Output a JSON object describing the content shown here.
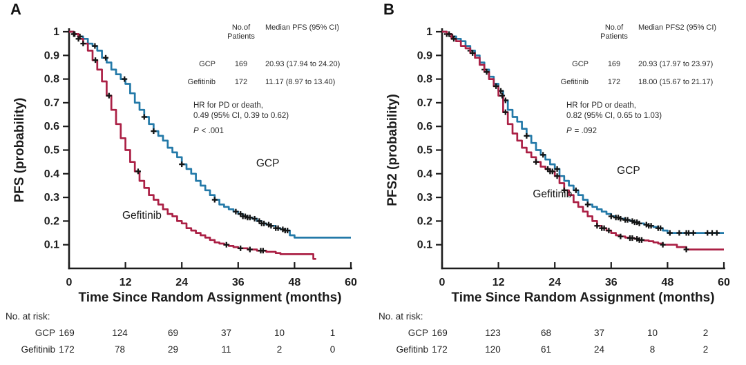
{
  "figure": {
    "colors": {
      "gcp": "#2379a8",
      "gefitinib": "#ab2045",
      "censor": "#141414",
      "axis": "#1c1c1c"
    }
  },
  "panels": [
    {
      "label": "A",
      "stats": {
        "col_n_header_line1": "No.of",
        "col_n_header_line2": "Patients",
        "col_median_header": "Median PFS (95% CI)",
        "rows": [
          {
            "name": "GCP",
            "n": "169",
            "median": "20.93 (17.94 to 24.20)"
          },
          {
            "name": "Gefitinib",
            "n": "172",
            "median": "11.17 (8.97 to 13.40)"
          }
        ]
      },
      "hr_line1": "HR for PD or death,",
      "hr_line2": "0.49 (95% CI, 0.39 to 0.62)",
      "p_label": "P",
      "p_value": "< .001",
      "risk_table": {
        "title": "No. at risk:",
        "rows": [
          {
            "name": "GCP",
            "values": [
              "169",
              "124",
              "69",
              "37",
              "10",
              "1"
            ]
          },
          {
            "name": "Gefitinib",
            "values": [
              "172",
              "78",
              "29",
              "11",
              "2",
              "0"
            ]
          }
        ]
      }
    },
    {
      "label": "B",
      "stats": {
        "col_n_header_line1": "No.of",
        "col_n_header_line2": "Patients",
        "col_median_header": "Median PFS2 (95% CI)",
        "rows": [
          {
            "name": "GCP",
            "n": "169",
            "median": "20.93 (17.97 to 23.97)"
          },
          {
            "name": "Gefitinib",
            "n": "172",
            "median": "18.00 (15.67 to 21.17)"
          }
        ]
      },
      "hr_line1": "HR for PD or death,",
      "hr_line2": "0.82 (95% CI, 0.65 to 1.03)",
      "p_label": "P",
      "p_value": "= .092",
      "risk_table": {
        "title": "No. at risk:",
        "rows": [
          {
            "name": "GCP",
            "values": [
              "169",
              "123",
              "68",
              "37",
              "10",
              "2"
            ]
          },
          {
            "name": "Gefitinb",
            "values": [
              "172",
              "120",
              "61",
              "24",
              "8",
              "2"
            ]
          }
        ]
      }
    }
  ],
  "chart_data": [
    {
      "type": "line",
      "subtype": "kaplan-meier-step",
      "xlabel": "Time Since Random Assignment (months)",
      "ylabel": "PFS (probability)",
      "xlim": [
        0,
        60
      ],
      "ylim": [
        0,
        1
      ],
      "xticks": [
        0,
        12,
        24,
        36,
        48,
        60
      ],
      "yticks": [
        1,
        0.9,
        0.8,
        0.7,
        0.6,
        0.5,
        0.4,
        0.3,
        0.2,
        0.1
      ],
      "grid": false,
      "series": [
        {
          "name": "GCP",
          "color_key": "gcp",
          "label_pos": [
            42.3,
            0.43
          ],
          "steps": [
            [
              0,
              1
            ],
            [
              1,
              0.99
            ],
            [
              2,
              0.98
            ],
            [
              3,
              0.97
            ],
            [
              4,
              0.95
            ],
            [
              5,
              0.94
            ],
            [
              6,
              0.92
            ],
            [
              7,
              0.89
            ],
            [
              8,
              0.87
            ],
            [
              9,
              0.84
            ],
            [
              10,
              0.82
            ],
            [
              11,
              0.8
            ],
            [
              12,
              0.78
            ],
            [
              13,
              0.74
            ],
            [
              14,
              0.7
            ],
            [
              15,
              0.67
            ],
            [
              16,
              0.64
            ],
            [
              17,
              0.61
            ],
            [
              18,
              0.58
            ],
            [
              19,
              0.56
            ],
            [
              20,
              0.54
            ],
            [
              21,
              0.51
            ],
            [
              22,
              0.49
            ],
            [
              23,
              0.47
            ],
            [
              24,
              0.44
            ],
            [
              25,
              0.42
            ],
            [
              26,
              0.4
            ],
            [
              27,
              0.37
            ],
            [
              28,
              0.35
            ],
            [
              29,
              0.33
            ],
            [
              30,
              0.31
            ],
            [
              31,
              0.29
            ],
            [
              32,
              0.27
            ],
            [
              33,
              0.26
            ],
            [
              34,
              0.25
            ],
            [
              35,
              0.24
            ],
            [
              36,
              0.23
            ],
            [
              37,
              0.22
            ],
            [
              38,
              0.215
            ],
            [
              39,
              0.21
            ],
            [
              40,
              0.2
            ],
            [
              41,
              0.19
            ],
            [
              42,
              0.185
            ],
            [
              43,
              0.18
            ],
            [
              44,
              0.17
            ],
            [
              45,
              0.165
            ],
            [
              46,
              0.16
            ],
            [
              47,
              0.14
            ],
            [
              48,
              0.13
            ],
            [
              60,
              0.13
            ]
          ],
          "censors": [
            1.2,
            2.3,
            5.5,
            7.8,
            11.8,
            16,
            18,
            24,
            31,
            35.5,
            36.5,
            37,
            37.5,
            38,
            38.5,
            39.5,
            40.5,
            41,
            41.5,
            42.5,
            43,
            44,
            44.5,
            45.5,
            46,
            46.5
          ]
        },
        {
          "name": "Gefitinib",
          "color_key": "gefitinib",
          "label_pos": [
            15.5,
            0.21
          ],
          "steps": [
            [
              0,
              1
            ],
            [
              1,
              0.99
            ],
            [
              2,
              0.97
            ],
            [
              3,
              0.95
            ],
            [
              4,
              0.92
            ],
            [
              5,
              0.88
            ],
            [
              6,
              0.84
            ],
            [
              7,
              0.79
            ],
            [
              8,
              0.73
            ],
            [
              9,
              0.67
            ],
            [
              10,
              0.61
            ],
            [
              11,
              0.55
            ],
            [
              12,
              0.5
            ],
            [
              13,
              0.45
            ],
            [
              14,
              0.41
            ],
            [
              15,
              0.37
            ],
            [
              16,
              0.34
            ],
            [
              17,
              0.31
            ],
            [
              18,
              0.29
            ],
            [
              19,
              0.27
            ],
            [
              20,
              0.25
            ],
            [
              21,
              0.23
            ],
            [
              22,
              0.22
            ],
            [
              23,
              0.2
            ],
            [
              24,
              0.19
            ],
            [
              25,
              0.17
            ],
            [
              26,
              0.16
            ],
            [
              27,
              0.15
            ],
            [
              28,
              0.14
            ],
            [
              29,
              0.13
            ],
            [
              30,
              0.12
            ],
            [
              31,
              0.11
            ],
            [
              32,
              0.105
            ],
            [
              33,
              0.1
            ],
            [
              34,
              0.095
            ],
            [
              35,
              0.09
            ],
            [
              36,
              0.085
            ],
            [
              38,
              0.08
            ],
            [
              40,
              0.075
            ],
            [
              42,
              0.07
            ],
            [
              44,
              0.065
            ],
            [
              45,
              0.06
            ],
            [
              48,
              0.06
            ],
            [
              52,
              0.04
            ],
            [
              52.6,
              0.04
            ]
          ],
          "censors": [
            1,
            2,
            3,
            5.6,
            8.5,
            14.7,
            33.5,
            36.5,
            38.5,
            40.8,
            41.3
          ]
        }
      ]
    },
    {
      "type": "line",
      "subtype": "kaplan-meier-step",
      "xlabel": "Time Since Random Assignment (months)",
      "ylabel": "PFS2 (probability)",
      "xlim": [
        0,
        60
      ],
      "ylim": [
        0,
        1
      ],
      "xticks": [
        0,
        12,
        24,
        36,
        48,
        60
      ],
      "yticks": [
        1,
        0.9,
        0.8,
        0.7,
        0.6,
        0.5,
        0.4,
        0.3,
        0.2,
        0.1
      ],
      "grid": false,
      "series": [
        {
          "name": "GCP",
          "color_key": "gcp",
          "label_pos": [
            39.7,
            0.4
          ],
          "steps": [
            [
              0,
              1
            ],
            [
              1,
              0.99
            ],
            [
              2,
              0.98
            ],
            [
              3,
              0.97
            ],
            [
              4,
              0.96
            ],
            [
              5,
              0.94
            ],
            [
              6,
              0.92
            ],
            [
              7,
              0.9
            ],
            [
              8,
              0.87
            ],
            [
              9,
              0.84
            ],
            [
              10,
              0.81
            ],
            [
              11,
              0.78
            ],
            [
              12,
              0.75
            ],
            [
              13,
              0.71
            ],
            [
              14,
              0.67
            ],
            [
              15,
              0.64
            ],
            [
              16,
              0.62
            ],
            [
              17,
              0.59
            ],
            [
              18,
              0.56
            ],
            [
              19,
              0.53
            ],
            [
              20,
              0.5
            ],
            [
              21,
              0.48
            ],
            [
              22,
              0.46
            ],
            [
              23,
              0.44
            ],
            [
              24,
              0.42
            ],
            [
              25,
              0.39
            ],
            [
              26,
              0.37
            ],
            [
              27,
              0.35
            ],
            [
              28,
              0.33
            ],
            [
              29,
              0.31
            ],
            [
              30,
              0.29
            ],
            [
              31,
              0.27
            ],
            [
              32,
              0.26
            ],
            [
              33,
              0.25
            ],
            [
              34,
              0.24
            ],
            [
              35,
              0.23
            ],
            [
              36,
              0.22
            ],
            [
              37,
              0.215
            ],
            [
              38,
              0.21
            ],
            [
              39,
              0.205
            ],
            [
              40,
              0.2
            ],
            [
              41,
              0.195
            ],
            [
              42,
              0.19
            ],
            [
              43,
              0.185
            ],
            [
              44,
              0.18
            ],
            [
              45,
              0.175
            ],
            [
              46,
              0.17
            ],
            [
              47,
              0.16
            ],
            [
              48,
              0.15
            ],
            [
              60,
              0.15
            ]
          ],
          "censors": [
            1,
            2.2,
            6,
            9,
            12.5,
            13.5,
            18,
            21.5,
            24.5,
            28.5,
            31,
            36,
            37,
            37.5,
            38,
            39,
            39.5,
            40.5,
            41,
            41.5,
            42,
            43.5,
            44,
            44.5,
            46,
            46.5,
            48.5,
            50.5,
            52,
            52.5,
            53.5,
            56.5,
            57.5,
            58.5
          ]
        },
        {
          "name": "Gefitinib",
          "color_key": "gefitinib",
          "label_pos": [
            23.5,
            0.3
          ],
          "steps": [
            [
              0,
              1
            ],
            [
              1,
              0.99
            ],
            [
              2,
              0.97
            ],
            [
              3,
              0.96
            ],
            [
              4,
              0.94
            ],
            [
              5,
              0.93
            ],
            [
              6,
              0.91
            ],
            [
              7,
              0.89
            ],
            [
              8,
              0.86
            ],
            [
              9,
              0.83
            ],
            [
              10,
              0.8
            ],
            [
              11,
              0.77
            ],
            [
              12,
              0.73
            ],
            [
              13,
              0.66
            ],
            [
              14,
              0.61
            ],
            [
              15,
              0.57
            ],
            [
              16,
              0.54
            ],
            [
              17,
              0.51
            ],
            [
              18,
              0.49
            ],
            [
              19,
              0.47
            ],
            [
              20,
              0.45
            ],
            [
              21,
              0.43
            ],
            [
              22,
              0.42
            ],
            [
              23,
              0.41
            ],
            [
              24,
              0.39
            ],
            [
              25,
              0.36
            ],
            [
              26,
              0.33
            ],
            [
              27,
              0.31
            ],
            [
              28,
              0.28
            ],
            [
              29,
              0.26
            ],
            [
              30,
              0.24
            ],
            [
              31,
              0.22
            ],
            [
              32,
              0.2
            ],
            [
              33,
              0.18
            ],
            [
              34,
              0.17
            ],
            [
              35,
              0.16
            ],
            [
              36,
              0.15
            ],
            [
              37,
              0.14
            ],
            [
              38,
              0.135
            ],
            [
              39,
              0.13
            ],
            [
              40,
              0.128
            ],
            [
              41,
              0.125
            ],
            [
              42,
              0.12
            ],
            [
              43,
              0.118
            ],
            [
              44,
              0.115
            ],
            [
              45,
              0.11
            ],
            [
              46,
              0.105
            ],
            [
              47,
              0.1
            ],
            [
              48,
              0.1
            ],
            [
              50,
              0.09
            ],
            [
              52,
              0.08
            ],
            [
              60,
              0.08
            ]
          ],
          "censors": [
            1.5,
            2.5,
            6.5,
            9.5,
            11.5,
            12.8,
            13.5,
            20,
            22.5,
            23,
            23.5,
            24.5,
            26,
            33,
            34,
            34.5,
            35.5,
            38,
            40,
            40.5,
            41.5,
            42,
            42.5,
            47,
            52
          ]
        }
      ]
    }
  ]
}
